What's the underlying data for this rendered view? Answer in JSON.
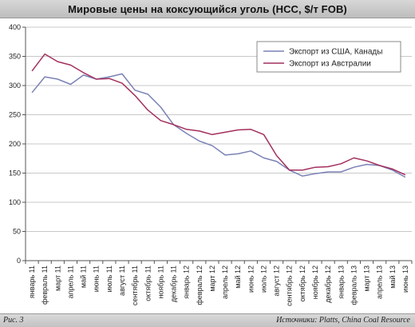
{
  "header": {
    "title": "Мировые цены на коксующийся уголь (HCC, $/т FOB)"
  },
  "footer": {
    "figure_label": "Рис. 3",
    "sources": "Источники: Platts, China Coal Resource"
  },
  "colors": {
    "usa_series": "#7b82b6",
    "aus_series": "#a3305e",
    "grid": "#c8c8c8",
    "axis": "#555555"
  },
  "chart_data": {
    "type": "line",
    "title": "Мировые цены на коксующийся уголь (HCC, $/т FOB)",
    "xlabel": "",
    "ylabel": "",
    "ylim": [
      0,
      400
    ],
    "yticks": [
      0,
      50,
      100,
      150,
      200,
      250,
      300,
      350,
      400
    ],
    "grid": "horizontal",
    "legend_position": "top-right",
    "categories": [
      "январь 11",
      "февраль 11",
      "март 11",
      "апрель 11",
      "май 11",
      "июнь 11",
      "июль 11",
      "август 11",
      "сентябрь 11",
      "октябрь 11",
      "ноябрь 11",
      "декабрь 11",
      "январь 12",
      "февраль 12",
      "март 12",
      "апрель 12",
      "май 12",
      "июнь 12",
      "июль 12",
      "август 12",
      "сентябрь 12",
      "октябрь 12",
      "ноябрь 12",
      "декабрь 12",
      "январь 13",
      "февраль 13",
      "март 13",
      "апрель 13",
      "май 13",
      "июнь 13"
    ],
    "series": [
      {
        "name": "Экспорт из США, Канады",
        "color": "#7b82b6",
        "values": [
          288,
          315,
          311,
          302,
          318,
          311,
          315,
          320,
          292,
          285,
          263,
          233,
          218,
          205,
          197,
          181,
          183,
          188,
          176,
          170,
          155,
          145,
          149,
          152,
          152,
          160,
          165,
          163,
          155,
          143
        ]
      },
      {
        "name": "Экспорт из Австралии",
        "color": "#a3305e",
        "values": [
          325,
          354,
          341,
          335,
          322,
          311,
          312,
          304,
          283,
          258,
          240,
          233,
          225,
          222,
          216,
          220,
          224,
          225,
          216,
          180,
          155,
          155,
          160,
          161,
          166,
          176,
          171,
          163,
          157,
          147
        ]
      }
    ]
  }
}
